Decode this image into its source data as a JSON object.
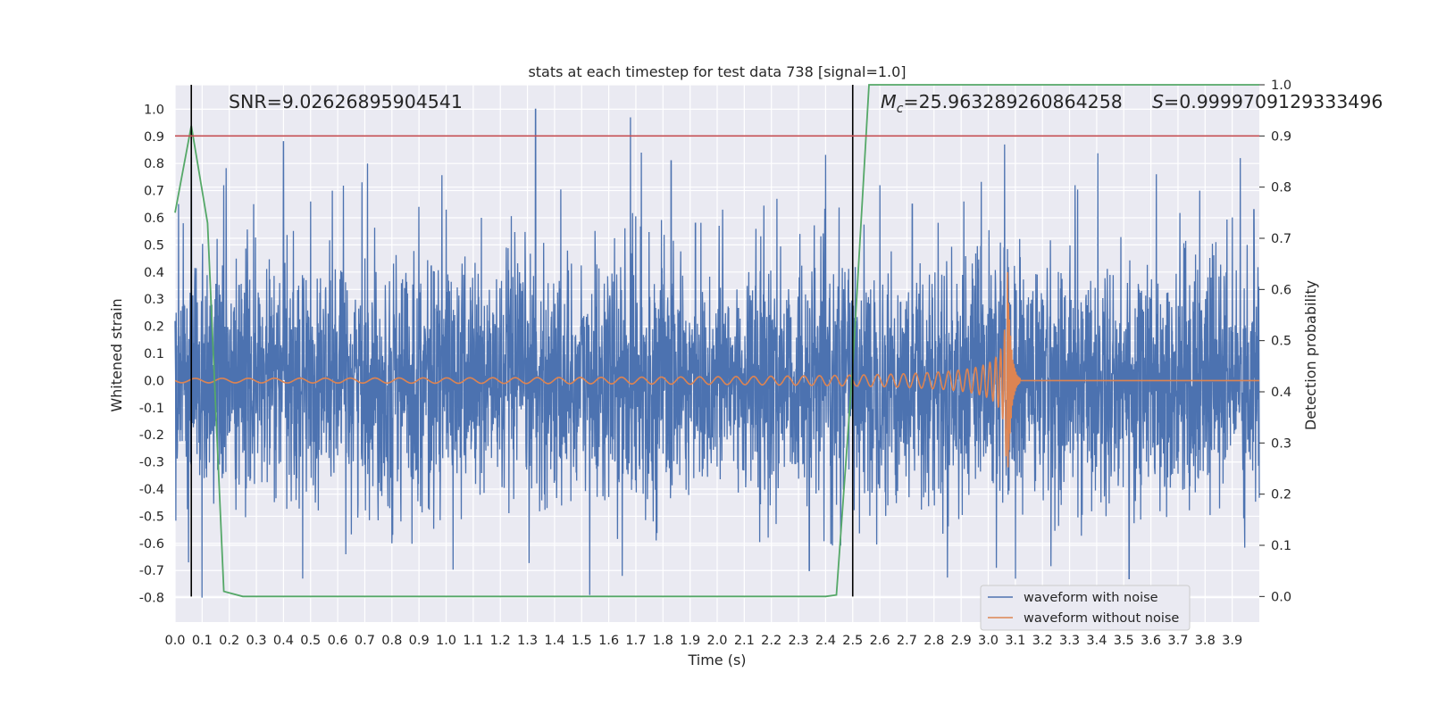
{
  "chart_data": {
    "type": "line",
    "title": "stats at each timestep for test data 738 [signal=1.0]",
    "xlabel": "Time (s)",
    "ylabel": "Whitened strain",
    "y2label": "Detection probability",
    "xlim": [
      0.0,
      4.0
    ],
    "ylim": [
      -0.89,
      1.09
    ],
    "y2lim": [
      -0.05,
      1.0
    ],
    "grid": true,
    "legend_position": "lower right",
    "x_ticks": [
      "0.0",
      "0.1",
      "0.2",
      "0.3",
      "0.4",
      "0.5",
      "0.6",
      "0.7",
      "0.8",
      "0.9",
      "1.0",
      "1.1",
      "1.2",
      "1.3",
      "1.4",
      "1.5",
      "1.6",
      "1.7",
      "1.8",
      "1.9",
      "2.0",
      "2.1",
      "2.2",
      "2.3",
      "2.4",
      "2.5",
      "2.6",
      "2.7",
      "2.8",
      "2.9",
      "3.0",
      "3.1",
      "3.2",
      "3.3",
      "3.4",
      "3.5",
      "3.6",
      "3.7",
      "3.8",
      "3.9"
    ],
    "y_ticks": [
      "1.0",
      "0.9",
      "0.8",
      "0.7",
      "0.6",
      "0.5",
      "0.4",
      "0.3",
      "0.2",
      "0.1",
      "0.0",
      "-0.1",
      "-0.2",
      "-0.3",
      "-0.4",
      "-0.5",
      "-0.6",
      "-0.7",
      "-0.8"
    ],
    "y2_ticks": [
      "1.0",
      "0.9",
      "0.8",
      "0.7",
      "0.6",
      "0.5",
      "0.4",
      "0.3",
      "0.2",
      "0.1",
      "0.0"
    ],
    "annotations": {
      "snr": "SNR=9.02626895904541",
      "mc_symbol": "M",
      "mc_sub": "c",
      "mc_value": "=25.963289260864258",
      "s_symbol": "S",
      "s_value": "=0.9999709129333496"
    },
    "vertical_lines_x": [
      0.06,
      2.5
    ],
    "threshold_line": {
      "axis": "right",
      "y": 0.9,
      "color": "#c44e52"
    },
    "series": [
      {
        "name": "waveform with noise",
        "color": "#4c72b0",
        "axis": "left",
        "noise_model": {
          "x_range": [
            0.0,
            4.0
          ],
          "typical_amplitude": 0.27,
          "extremes": [
            {
              "x": 0.03,
              "y": 0.58
            },
            {
              "x": 0.05,
              "y": -0.67
            },
            {
              "x": 0.06,
              "y": 0.82
            },
            {
              "x": 0.1,
              "y": -0.8
            },
            {
              "x": 0.18,
              "y": 0.72
            },
            {
              "x": 0.29,
              "y": 0.65
            },
            {
              "x": 0.4,
              "y": 0.88
            },
            {
              "x": 0.5,
              "y": 0.66
            },
            {
              "x": 0.58,
              "y": 0.7
            },
            {
              "x": 0.63,
              "y": -0.64
            },
            {
              "x": 0.71,
              "y": 0.8
            },
            {
              "x": 0.8,
              "y": -0.6
            },
            {
              "x": 0.9,
              "y": 0.64
            },
            {
              "x": 1.0,
              "y": 0.63
            },
            {
              "x": 1.13,
              "y": 0.6
            },
            {
              "x": 1.33,
              "y": 1.0
            },
            {
              "x": 1.53,
              "y": -0.79
            },
            {
              "x": 1.65,
              "y": -0.72
            },
            {
              "x": 1.68,
              "y": 0.97
            },
            {
              "x": 1.72,
              "y": 0.84
            },
            {
              "x": 1.83,
              "y": 0.81
            },
            {
              "x": 1.92,
              "y": 0.58
            },
            {
              "x": 2.02,
              "y": 0.63
            },
            {
              "x": 2.22,
              "y": 0.67
            },
            {
              "x": 2.34,
              "y": -0.7
            },
            {
              "x": 2.42,
              "y": -0.6
            },
            {
              "x": 2.6,
              "y": 0.72
            },
            {
              "x": 2.72,
              "y": 0.65
            },
            {
              "x": 2.91,
              "y": 0.66
            },
            {
              "x": 3.03,
              "y": -0.69
            },
            {
              "x": 3.06,
              "y": 0.87
            },
            {
              "x": 3.1,
              "y": -0.73
            },
            {
              "x": 3.32,
              "y": 0.72
            },
            {
              "x": 3.52,
              "y": -0.73
            },
            {
              "x": 3.62,
              "y": 0.76
            },
            {
              "x": 3.78,
              "y": 0.7
            },
            {
              "x": 3.93,
              "y": 0.82
            },
            {
              "x": 3.98,
              "y": 0.63
            }
          ]
        }
      },
      {
        "name": "waveform without noise",
        "color": "#dd8452",
        "axis": "left",
        "chirp_model": {
          "x_range": [
            0.0,
            4.0
          ],
          "merger_x": 3.07,
          "start_amplitude": 0.008,
          "peak_amplitude": 0.47,
          "start_frequency_hz": 10,
          "ringdown_s": 0.012,
          "after_merger_y": 0.0
        }
      },
      {
        "name": "detection probability",
        "color": "#55a868",
        "axis": "right",
        "x": [
          0.0,
          0.06,
          0.12,
          0.18,
          0.25,
          2.4,
          2.44,
          2.5,
          2.56,
          4.0
        ],
        "y": [
          0.75,
          0.92,
          0.73,
          0.01,
          0.0,
          0.0,
          0.003,
          0.45,
          1.0,
          1.0
        ]
      }
    ]
  }
}
